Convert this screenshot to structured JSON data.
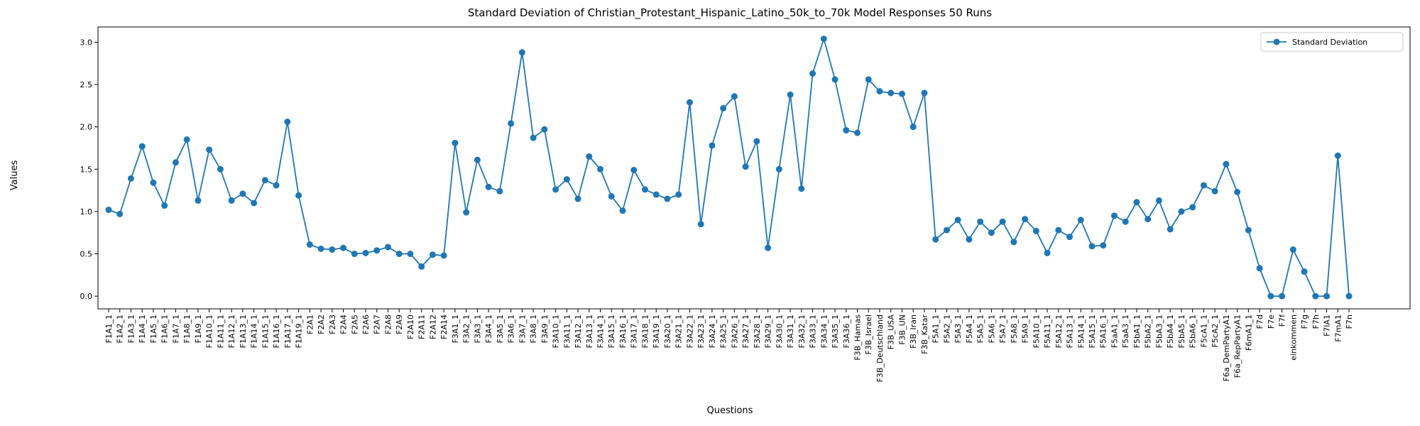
{
  "chart_data": {
    "type": "line",
    "title": "Standard Deviation of Christian_Protestant_Hispanic_Latino_50k_to_70k Model Responses 50 Runs",
    "x_label": "Questions",
    "y_label": "Values",
    "categories": [
      "F1A1_1",
      "F1A2_1",
      "F1A3_1",
      "F1A4_1",
      "F1A5_1",
      "F1A6_1",
      "F1A7_1",
      "F1A8_1",
      "F1A9_1",
      "F1A10_1",
      "F1A11_1",
      "F1A12_1",
      "F1A13_1",
      "F1A14_1",
      "F1A15_1",
      "F1A16_1",
      "F1A17_1",
      "F1A19_1",
      "F2A1",
      "F2A2",
      "F2A3",
      "F2A4",
      "F2A5",
      "F2A6",
      "F2A7",
      "F2A8",
      "F2A9",
      "F2A10",
      "F2A11",
      "F2A12",
      "F2A14",
      "F3A1_1",
      "F3A2_1",
      "F3A3_1",
      "F3A4_1",
      "F3A5_1",
      "F3A6_1",
      "F3A7_1",
      "F3A8_1",
      "F3A9_1",
      "F3A10_1",
      "F3A11_1",
      "F3A12_1",
      "F3A13_1",
      "F3A14_1",
      "F3A15_1",
      "F3A16_1",
      "F3A17_1",
      "F3A18_1",
      "F3A19_1",
      "F3A20_1",
      "F3A21_1",
      "F3A22_1",
      "F3A23_1",
      "F3A24_1",
      "F3A25_1",
      "F3A26_1",
      "F3A27_1",
      "F3A28_1",
      "F3A29_1",
      "F3A30_1",
      "F3A31_1",
      "F3A32_1",
      "F3A33_1",
      "F3A34_1",
      "F3A35_1",
      "F3A36_1",
      "F3B_Hamas",
      "F3B_Israel",
      "F3B_Deutschland",
      "F3B_USA",
      "F3B_UN",
      "F3B_Iran",
      "F3B_Katar",
      "F5A1_1",
      "F5A2_1",
      "F5A3_1",
      "F5A4_1",
      "F5A5_1",
      "F5A6_1",
      "F5A7_1",
      "F5A8_1",
      "F5A9_1",
      "F5A10_1",
      "F5A11_1",
      "F5A12_1",
      "F5A13_1",
      "F5A14_1",
      "F5A15_1",
      "F5A16_1",
      "F5aA1_1",
      "F5aA3_1",
      "F5bA1_1",
      "F5bA2_1",
      "F5bA3_1",
      "F5bA4_1",
      "F5bA5_1",
      "F5bA6_1",
      "F5cA1_1",
      "F5cA2_1",
      "F6a_DemPartyA1",
      "F6a_RepPartyA1",
      "F6mA1_1",
      "F7d",
      "F7e",
      "F7f",
      "einkommen",
      "F7g",
      "F7h",
      "F7lA1",
      "F7mA1",
      "F7n"
    ],
    "series": [
      {
        "name": "Standard Deviation",
        "color": "#1f77b4",
        "values": [
          1.02,
          0.97,
          1.39,
          1.77,
          1.34,
          1.07,
          1.58,
          1.85,
          1.13,
          1.73,
          1.5,
          1.13,
          1.21,
          1.1,
          1.37,
          1.31,
          2.06,
          1.19,
          0.61,
          0.56,
          0.55,
          0.57,
          0.5,
          0.51,
          0.54,
          0.58,
          0.5,
          0.5,
          0.35,
          0.49,
          0.48,
          1.81,
          0.99,
          1.61,
          1.29,
          1.24,
          2.04,
          2.88,
          1.87,
          1.97,
          1.26,
          1.38,
          1.15,
          1.65,
          1.5,
          1.18,
          1.01,
          1.49,
          1.26,
          1.2,
          1.15,
          1.2,
          2.29,
          0.85,
          1.78,
          2.22,
          2.36,
          1.53,
          1.83,
          0.57,
          1.5,
          2.38,
          1.27,
          2.63,
          3.04,
          2.56,
          1.96,
          1.93,
          2.56,
          2.42,
          2.4,
          2.39,
          2.0,
          2.4,
          0.67,
          0.78,
          0.9,
          0.67,
          0.88,
          0.75,
          0.88,
          0.64,
          0.91,
          0.77,
          0.51,
          0.78,
          0.7,
          0.9,
          0.59,
          0.6,
          0.95,
          0.88,
          1.11,
          0.91,
          1.13,
          0.79,
          1.0,
          1.05,
          1.31,
          1.24,
          1.56,
          1.23,
          0.78,
          0.33,
          0,
          0,
          0.55,
          0.29,
          0,
          0,
          1.66,
          0
        ]
      }
    ],
    "ylim": [
      -0.15,
      3.18
    ],
    "yticks": [
      {
        "value": 0,
        "label": "0.0"
      },
      0.5,
      {
        "value": 1,
        "label": "1.0"
      },
      1.5,
      {
        "value": 2,
        "label": "2.0"
      },
      2.5,
      {
        "value": 3,
        "label": "3.0"
      }
    ],
    "legend": "upper right",
    "grid": false
  }
}
